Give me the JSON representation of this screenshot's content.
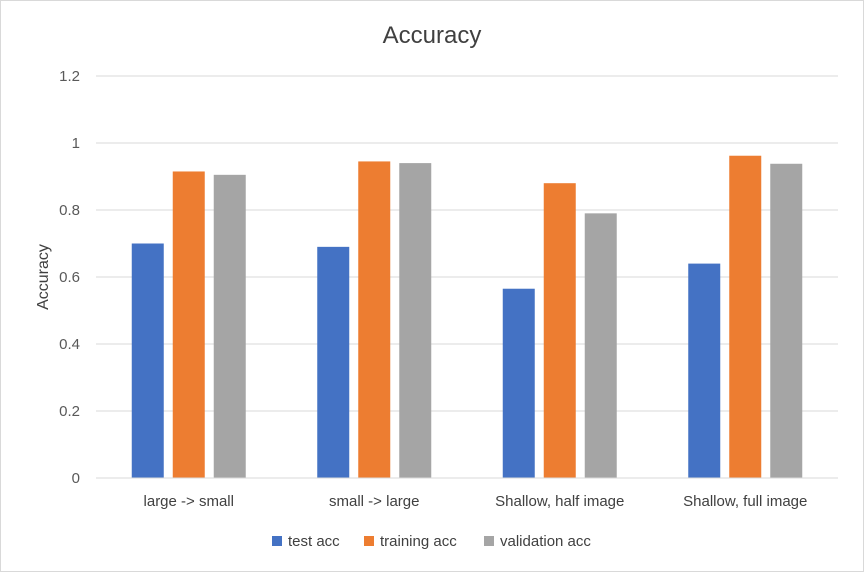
{
  "chart_data": {
    "type": "bar",
    "title": "Accuracy",
    "xlabel": "",
    "ylabel": "Accuracy",
    "ylim": [
      0,
      1.2
    ],
    "yticks": [
      "0",
      "0.2",
      "0.4",
      "0.6",
      "0.8",
      "1",
      "1.2"
    ],
    "grid": true,
    "legend": "bottom",
    "categories": [
      "large -> small",
      "small -> large",
      "Shallow, half image",
      "Shallow,  full image"
    ],
    "series": [
      {
        "name": "test acc",
        "color": "#4472C4",
        "values": [
          0.7,
          0.69,
          0.565,
          0.64
        ]
      },
      {
        "name": "training acc",
        "color": "#ED7D31",
        "values": [
          0.915,
          0.945,
          0.88,
          0.962
        ]
      },
      {
        "name": "validation acc",
        "color": "#A5A5A5",
        "values": [
          0.905,
          0.94,
          0.79,
          0.938
        ]
      }
    ]
  }
}
